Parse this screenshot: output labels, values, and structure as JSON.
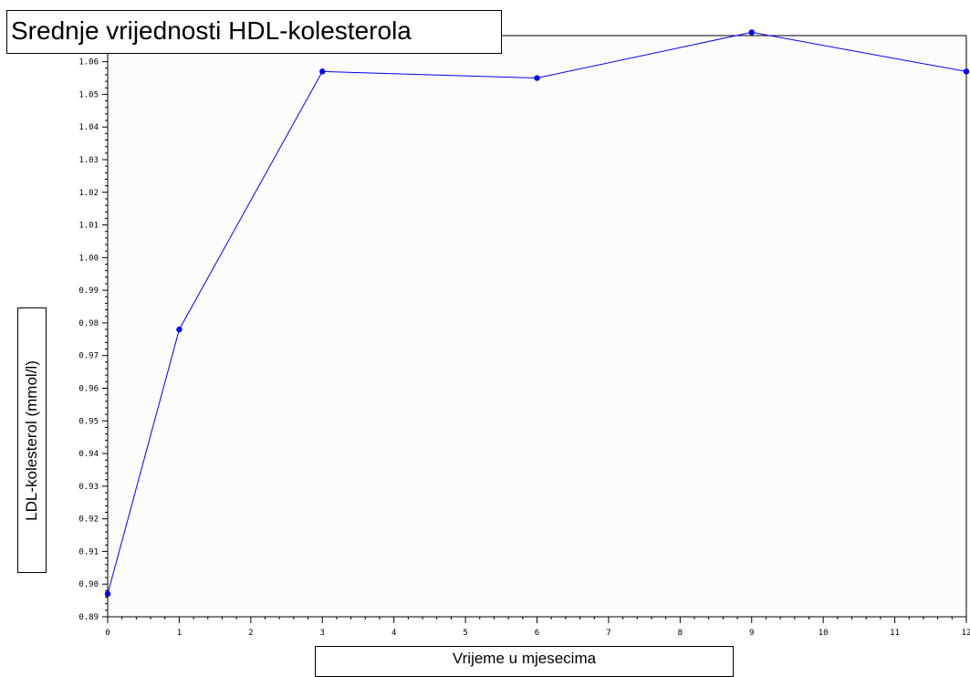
{
  "chart_data": {
    "type": "line",
    "title": "Srednje vrijednosti HDL-kolesterola",
    "xlabel": "Vrijeme u mjesecima",
    "ylabel": "LDL-kolesterol (mmol/l)",
    "xlim": [
      0,
      12
    ],
    "ylim": [
      0.89,
      1.068
    ],
    "x_ticks": [
      0,
      1,
      2,
      3,
      4,
      5,
      6,
      7,
      8,
      9,
      10,
      11,
      12
    ],
    "x_tick_labels": [
      "0",
      "1",
      "2",
      "3",
      "4",
      "5",
      "6",
      "7",
      "8",
      "9",
      "10",
      "11",
      "12"
    ],
    "y_ticks": [
      0.89,
      0.9,
      0.91,
      0.92,
      0.93,
      0.94,
      0.95,
      0.96,
      0.97,
      0.98,
      0.99,
      1.0,
      1.01,
      1.02,
      1.03,
      1.04,
      1.05,
      1.06
    ],
    "y_tick_labels": [
      "0.89",
      "0.90",
      "0.91",
      "0.92",
      "0.93",
      "0.94",
      "0.95",
      "0.96",
      "0.97",
      "0.98",
      "0.99",
      "1.00",
      "1.01",
      "1.02",
      "1.03",
      "1.04",
      "1.05",
      "1.06"
    ],
    "grid": false,
    "series": [
      {
        "x": [
          0,
          1,
          3,
          6,
          9,
          12
        ],
        "y": [
          0.897,
          0.978,
          1.057,
          1.055,
          1.069,
          1.057
        ],
        "color": "#0000ff"
      }
    ],
    "colors": {
      "plot_background": "#fcfcfd",
      "line": "#0000ff",
      "axis": "#000000"
    }
  }
}
